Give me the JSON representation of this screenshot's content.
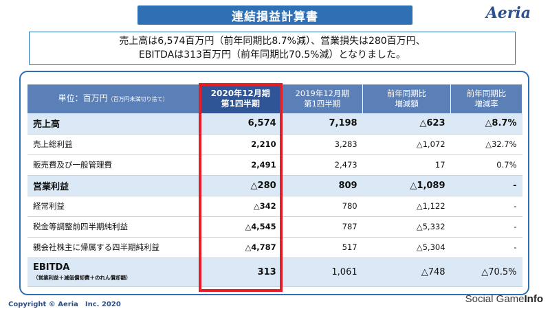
{
  "header": {
    "title": "連結損益計算書",
    "logo": "Aeria"
  },
  "summary": {
    "line1": "売上高は6,574百万円（前年同期比8.7%減）、営業損失は280百万円、",
    "line2": "EBITDAは313百万円（前年同期比70.5%減）となりました。"
  },
  "table": {
    "headers": {
      "unit_main": "単位：百万円",
      "unit_note": "（百万円未満切り捨て）",
      "current_line1": "2020年12月期",
      "current_line2": "第1四半期",
      "prior_line1": "2019年12月期",
      "prior_line2": "第1四半期",
      "change_amount_line1": "前年同期比",
      "change_amount_line2": "増減額",
      "change_rate_line1": "前年同期比",
      "change_rate_line2": "増減率"
    },
    "rows": [
      {
        "label": "売上高",
        "current": "6,574",
        "prior": "7,198",
        "change": "△623",
        "rate": "△8.7%"
      },
      {
        "label": "売上総利益",
        "current": "2,210",
        "prior": "3,283",
        "change": "△1,072",
        "rate": "△32.7%"
      },
      {
        "label": "販売費及び一般管理費",
        "current": "2,491",
        "prior": "2,473",
        "change": "17",
        "rate": "0.7%"
      },
      {
        "label": "営業利益",
        "current": "△280",
        "prior": "809",
        "change": "△1,089",
        "rate": "-"
      },
      {
        "label": "経常利益",
        "current": "△342",
        "prior": "780",
        "change": "△1,122",
        "rate": "-"
      },
      {
        "label": "税金等調整前四半期純利益",
        "current": "△4,545",
        "prior": "787",
        "change": "△5,332",
        "rate": "-"
      },
      {
        "label": "親会社株主に帰属する四半期純利益",
        "current": "△4,787",
        "prior": "517",
        "change": "△5,304",
        "rate": "-"
      },
      {
        "label": "EBITDA",
        "sublabel": "（営業利益＋減価償却費＋のれん償却額）",
        "current": "313",
        "prior": "1,061",
        "change": "△748",
        "rate": "△70.5%"
      }
    ]
  },
  "footer": {
    "copyright": "Copyright © Aeria　Inc. 2020",
    "watermark_a": "Social Game",
    "watermark_b": "Info"
  },
  "colors": {
    "title_bar": "#2f6fb3",
    "header_row": "#5b7fb7",
    "major_row": "#dbe8f5",
    "highlight": "#e41e26"
  }
}
